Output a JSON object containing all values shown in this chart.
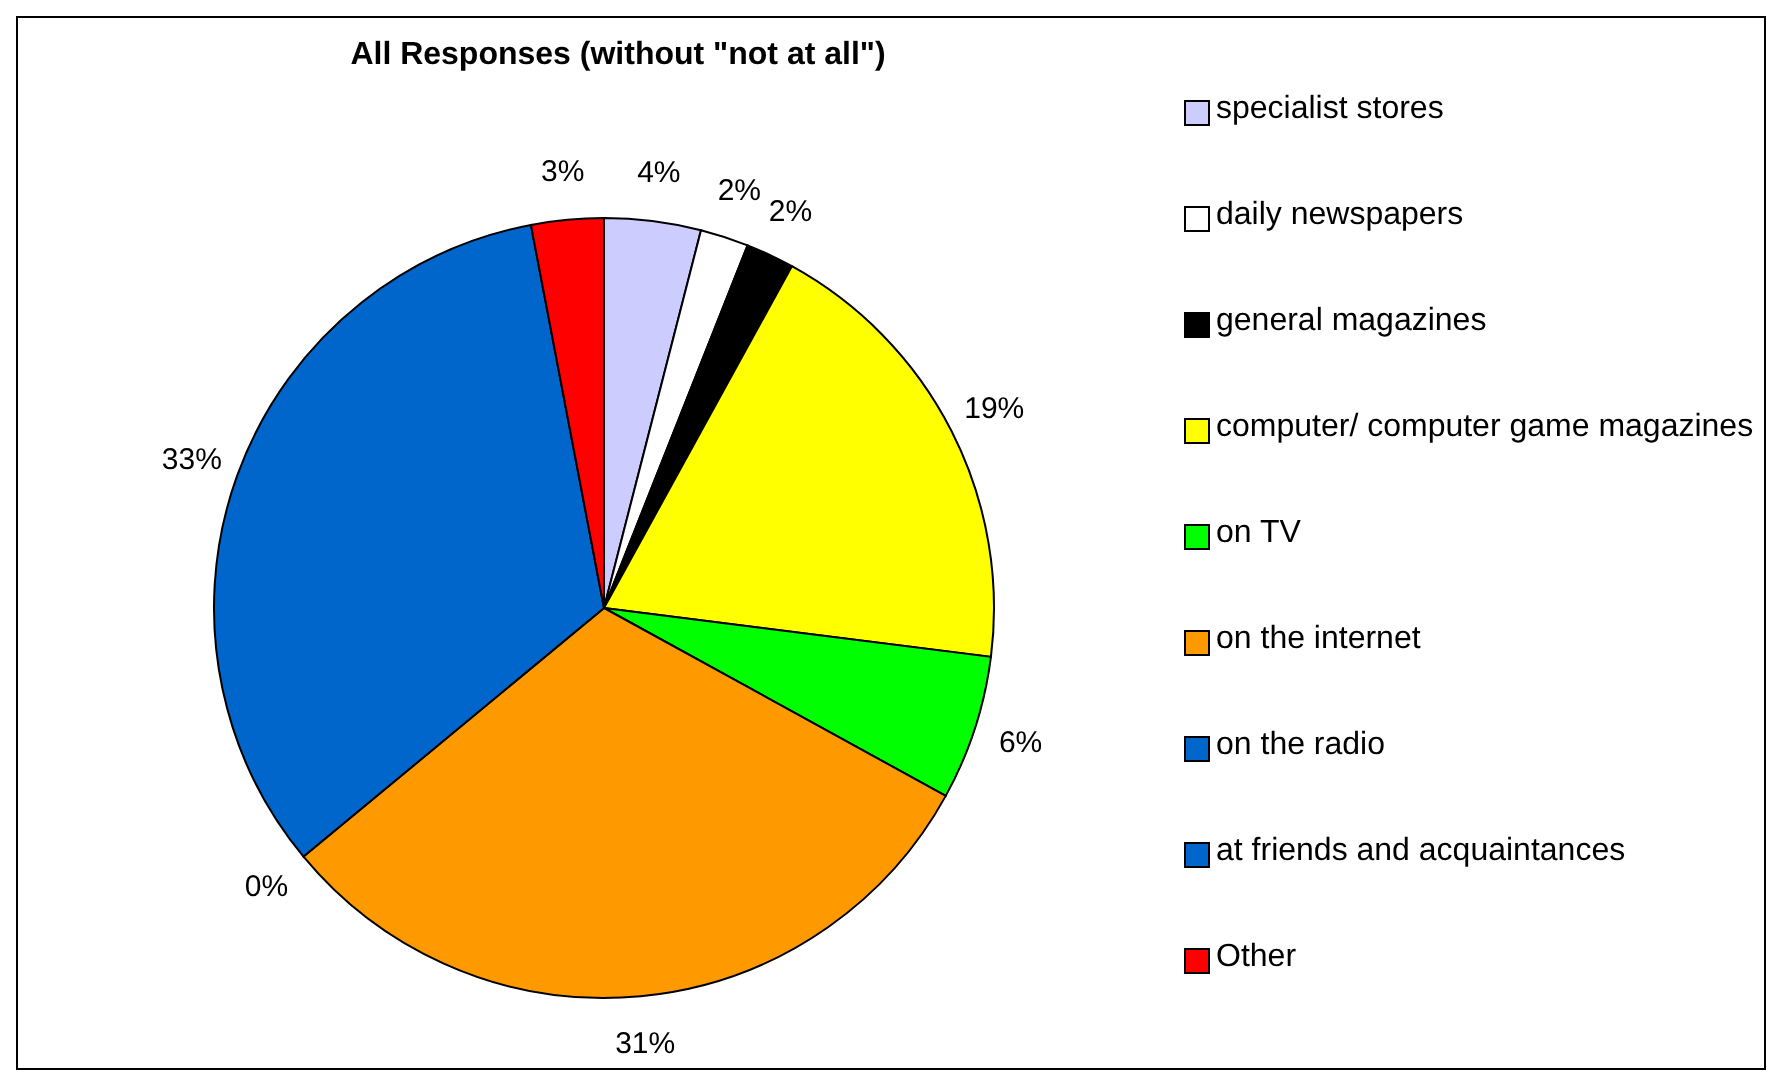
{
  "chart_data": {
    "type": "pie",
    "title": "All Responses (without \"not at all\")",
    "categories": [
      "specialist stores",
      "daily newspapers",
      "general magazines",
      "computer/ computer game magazines",
      "on TV",
      "on the internet",
      "on the radio",
      "at friends and acquaintances",
      "Other"
    ],
    "values": [
      4,
      2,
      2,
      19,
      6,
      31,
      0,
      33,
      3
    ],
    "colors": [
      "#ccccff",
      "#ffffff",
      "#000000",
      "#ffff00",
      "#00ff00",
      "#ff9900",
      "#0066cc",
      "#0066cc",
      "#ff0000"
    ],
    "value_labels": [
      "4%",
      "2%",
      "2%",
      "19%",
      "6%",
      "31%",
      "0%",
      "33%",
      "3%"
    ],
    "legend": "right"
  }
}
